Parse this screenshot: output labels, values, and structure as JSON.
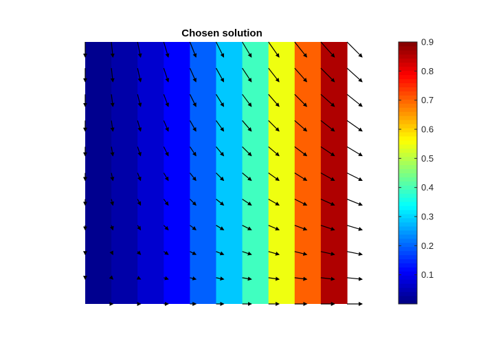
{
  "chart_data": {
    "type": "heatmap",
    "title": "Chosen solution",
    "xlabel": "",
    "ylabel": "",
    "x_range": [
      0,
      1
    ],
    "y_range": [
      0,
      1
    ],
    "grid": false,
    "bands": {
      "values": [
        0.0,
        0.1,
        0.2,
        0.3,
        0.4,
        0.5,
        0.6,
        0.7,
        0.8,
        0.9
      ],
      "colors": [
        "#00008F",
        "#0000A8",
        "#0000CF",
        "#0000FF",
        "#0060FF",
        "#00C8FF",
        "#40FFC0",
        "#EFFF10",
        "#FF6000",
        "#AF0000"
      ]
    },
    "quiver": {
      "columns": 11,
      "rows": 11,
      "description_values": "vector field; vertical component decreases from top to bottom, horizontal component increases from left to right",
      "u_left": 0.0,
      "u_right": 1.0,
      "v_top": -1.0,
      "v_bottom": 0.0
    },
    "colorbar": {
      "position": "right",
      "ticks": [
        "0.1",
        "0.2",
        "0.3",
        "0.4",
        "0.5",
        "0.6",
        "0.7",
        "0.8",
        "0.9"
      ],
      "tick_values": [
        0.1,
        0.2,
        0.3,
        0.4,
        0.5,
        0.6,
        0.7,
        0.8,
        0.9
      ],
      "range": [
        0.0,
        0.9
      ],
      "colormap": "jet"
    }
  }
}
